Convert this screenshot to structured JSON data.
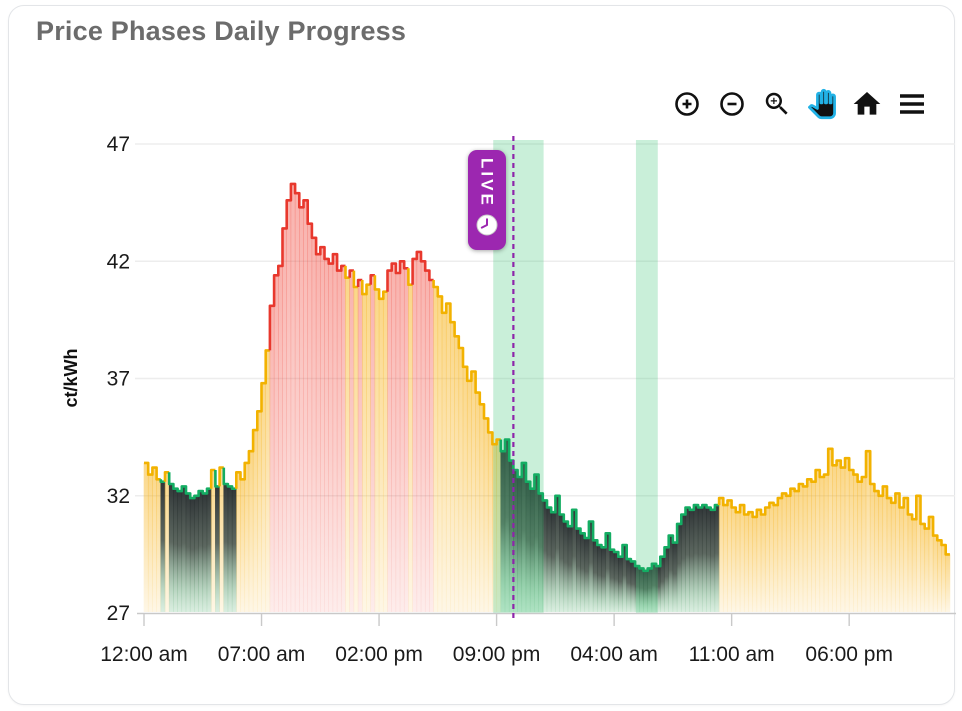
{
  "card": {
    "title": "Price Phases Daily Progress"
  },
  "toolbar": {
    "active": "pan",
    "buttons": [
      {
        "id": "zoom-in",
        "icon": "zoom-in-icon"
      },
      {
        "id": "zoom-out",
        "icon": "zoom-out-icon"
      },
      {
        "id": "box-zoom",
        "icon": "magnifier-plus-icon"
      },
      {
        "id": "pan",
        "icon": "hand-icon"
      },
      {
        "id": "home",
        "icon": "home-icon"
      },
      {
        "id": "menu",
        "icon": "hamburger-icon"
      }
    ]
  },
  "chart_data": {
    "type": "area",
    "subtype": "step-line-with-phase-fills",
    "title": "Price Phases Daily Progress",
    "ylabel": "ct/kWh",
    "unit": "ct/kWh",
    "ylim": [
      27,
      47
    ],
    "yticks": [
      47,
      42,
      37,
      32,
      27
    ],
    "grid": true,
    "xtick_labels": [
      "12:00 am",
      "07:00 am",
      "02:00 pm",
      "09:00 pm",
      "04:00 am",
      "11:00 am",
      "06:00 pm"
    ],
    "xtick_hours": [
      0,
      7,
      14,
      21,
      28,
      35,
      42
    ],
    "x_range_hours": [
      0,
      48
    ],
    "step_hours": 0.25,
    "now_hour": 22.0,
    "now_label": "LIVE",
    "now_line_color": "#8e24aa",
    "badge_color": "#9c27b0",
    "highlight_bands_hours": [
      [
        20.8,
        23.8
      ],
      [
        29.3,
        30.6
      ]
    ],
    "band_color": "rgba(61,199,118,0.28)",
    "phase_colors": {
      "y": {
        "name": "normal-price",
        "line": "#f2b200",
        "fill": "#f6b21a"
      },
      "r": {
        "name": "high-price",
        "line": "#e8382d",
        "fill": "#f0483c"
      },
      "g": {
        "name": "low-price",
        "line": "#14ad63",
        "fill": "#282e30"
      }
    },
    "phases": [
      "yyyy",
      "gygg",
      "gggg",
      "gggg",
      "ygyg",
      "ggyy",
      "yyyy",
      "yyrr",
      "rrrr",
      "rrrr",
      "rrrr",
      "rrrr",
      "yryr",
      "yyry",
      "yyrr",
      "rrry",
      "rrrr",
      "ryyy",
      "yyyy",
      "yyyy",
      "yyyy",
      "yggg",
      "gggg",
      "gggg",
      "gggg",
      "gggg",
      "gggg",
      "gggg",
      "gggg",
      "gggg",
      "gggg",
      "gggg",
      "gggg",
      "gggg",
      "gyyy",
      "yyyy",
      "yyyy",
      "yyyy",
      "yyyy",
      "yyyy",
      "yyyy",
      "yyyy",
      "yyyy",
      "yyyy",
      "yyyy",
      "yyyy",
      "yyyy",
      "yyyy"
    ],
    "values": [
      33.4,
      32.9,
      33.2,
      32.7,
      32.6,
      33.0,
      32.5,
      32.3,
      32.2,
      32.4,
      32.1,
      31.9,
      32.0,
      32.2,
      32.1,
      32.3,
      33.1,
      32.4,
      33.2,
      32.5,
      32.4,
      32.3,
      33.0,
      32.7,
      33.4,
      33.9,
      34.8,
      35.6,
      36.8,
      38.2,
      40.1,
      41.4,
      41.8,
      43.4,
      44.6,
      45.3,
      44.9,
      44.3,
      44.6,
      43.6,
      43.0,
      42.3,
      42.6,
      42.1,
      41.9,
      42.3,
      41.6,
      41.8,
      41.3,
      41.6,
      40.9,
      41.2,
      40.6,
      41.0,
      41.4,
      40.8,
      40.4,
      40.7,
      41.6,
      41.9,
      41.5,
      42.0,
      41.7,
      41.0,
      42.1,
      42.4,
      42.0,
      41.6,
      41.2,
      40.9,
      40.5,
      39.8,
      40.2,
      39.4,
      38.8,
      38.3,
      37.5,
      36.9,
      37.3,
      36.4,
      35.9,
      35.3,
      34.7,
      34.2,
      34.4,
      33.9,
      34.4,
      33.5,
      33.1,
      32.8,
      33.4,
      32.6,
      32.3,
      32.9,
      32.1,
      31.8,
      31.5,
      31.3,
      32.0,
      31.2,
      30.9,
      30.7,
      31.4,
      30.6,
      30.4,
      30.2,
      30.9,
      30.1,
      29.9,
      29.8,
      30.4,
      29.7,
      29.6,
      29.4,
      29.9,
      29.3,
      29.2,
      29.0,
      28.9,
      28.8,
      28.9,
      29.1,
      29.0,
      29.4,
      29.8,
      30.3,
      30.0,
      30.8,
      31.2,
      31.5,
      31.4,
      31.6,
      31.5,
      31.6,
      31.5,
      31.4,
      31.6,
      31.9,
      31.6,
      31.8,
      31.5,
      31.3,
      31.6,
      31.2,
      31.3,
      31.1,
      31.4,
      31.2,
      31.5,
      31.7,
      31.6,
      31.9,
      32.1,
      32.0,
      32.3,
      32.2,
      32.5,
      32.4,
      32.7,
      32.6,
      33.1,
      32.8,
      32.9,
      34.0,
      33.3,
      33.5,
      33.2,
      33.6,
      33.1,
      32.9,
      32.6,
      32.8,
      33.9,
      32.5,
      32.2,
      32.0,
      32.4,
      31.9,
      31.7,
      32.1,
      31.5,
      31.9,
      31.2,
      31.0,
      32.0,
      30.8,
      30.6,
      31.1,
      30.3,
      30.1,
      29.9,
      29.5
    ]
  }
}
